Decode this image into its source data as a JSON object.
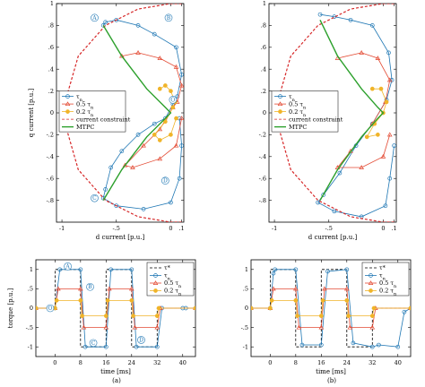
{
  "chart_data": [
    {
      "type": "line",
      "panel": "top-left",
      "xlabel": "d current [p.u.]",
      "ylabel": "q current [p.u.]",
      "xlim": [
        -1.05,
        0.12
      ],
      "ylim": [
        -1.0,
        1.0
      ],
      "x_ticks": [
        -1,
        -0.5,
        0,
        0.1
      ],
      "y_ticks": [
        -0.8,
        -0.6,
        -0.4,
        -0.2,
        0,
        0.2,
        0.4,
        0.6,
        0.8,
        1
      ],
      "legend_position": "middle-left",
      "series": [
        {
          "name": "τ_n",
          "color": "#1f77b4",
          "marker": "circle",
          "x": [
            -0.62,
            -0.6,
            -0.5,
            -0.3,
            -0.15,
            0.05,
            0.1,
            0.06,
            0.02,
            -0.05,
            -0.15,
            -0.3,
            -0.45,
            -0.55,
            -0.6,
            -0.62,
            -0.5,
            -0.25,
            0.0,
            0.08,
            0.1,
            0.08
          ],
          "y": [
            0.8,
            0.83,
            0.85,
            0.8,
            0.72,
            0.6,
            0.35,
            0.15,
            0.08,
            -0.05,
            -0.1,
            -0.2,
            -0.35,
            -0.5,
            -0.7,
            -0.78,
            -0.85,
            -0.88,
            -0.82,
            -0.6,
            -0.3,
            -0.05
          ]
        },
        {
          "name": "0.5 τ_n",
          "color": "#e34a33",
          "marker": "triangle",
          "x": [
            -0.45,
            -0.3,
            -0.1,
            0.05,
            0.1,
            0.06,
            0.02,
            -0.1,
            -0.25,
            -0.42,
            -0.35,
            -0.1,
            0.05,
            0.1
          ],
          "y": [
            0.52,
            0.55,
            0.5,
            0.42,
            0.25,
            0.1,
            0.05,
            -0.15,
            -0.3,
            -0.48,
            -0.5,
            -0.42,
            -0.3,
            -0.05
          ]
        },
        {
          "name": "0.2 τ_n",
          "color": "#f0b429",
          "marker": "circle",
          "x": [
            -0.1,
            -0.05,
            0.0,
            0.04,
            0.02,
            -0.05,
            -0.15,
            -0.1,
            0.0,
            0.05
          ],
          "y": [
            0.22,
            0.25,
            0.2,
            0.1,
            0.05,
            -0.08,
            -0.2,
            -0.25,
            -0.2,
            -0.05
          ]
        },
        {
          "name": "current constraint",
          "color": "#d62728",
          "style": "dashed",
          "x": [
            0.1,
            0.0,
            -0.3,
            -0.6,
            -0.85,
            -1.0,
            -0.85,
            -0.6,
            -0.3,
            0.0,
            0.1
          ],
          "y": [
            1.0,
            1.0,
            0.95,
            0.8,
            0.52,
            0.0,
            -0.52,
            -0.8,
            -0.95,
            -1.0,
            -1.0
          ]
        },
        {
          "name": "MTPC",
          "color": "#2ca02c",
          "x": [
            -0.62,
            -0.45,
            -0.22,
            -0.05,
            0.0,
            -0.05,
            -0.22,
            -0.45,
            -0.62
          ],
          "y": [
            0.8,
            0.52,
            0.22,
            0.05,
            0.0,
            -0.05,
            -0.22,
            -0.52,
            -0.8
          ]
        }
      ],
      "annotations": [
        "A",
        "B",
        "C",
        "D",
        "O"
      ]
    },
    {
      "type": "line",
      "panel": "top-right",
      "xlabel": "d current [p.u.]",
      "xlim": [
        -1.05,
        0.12
      ],
      "ylim": [
        -1.0,
        1.0
      ],
      "x_ticks": [
        -1,
        -0.5,
        0,
        0.1
      ],
      "y_ticks": [
        -0.8,
        -0.6,
        -0.4,
        -0.2,
        0,
        0.2,
        0.4,
        0.6,
        0.8,
        1
      ],
      "legend_position": "middle-left",
      "series": [
        {
          "name": "τ_n",
          "color": "#1f77b4",
          "marker": "circle",
          "x": [
            -0.58,
            -0.45,
            -0.3,
            -0.1,
            0.05,
            0.08,
            0.03,
            -0.1,
            -0.25,
            -0.4,
            -0.55,
            -0.6,
            -0.45,
            -0.2,
            0.02,
            0.06,
            0.1
          ],
          "y": [
            0.9,
            0.88,
            0.85,
            0.8,
            0.55,
            0.3,
            0.12,
            -0.1,
            -0.3,
            -0.55,
            -0.75,
            -0.82,
            -0.9,
            -0.95,
            -0.85,
            -0.6,
            -0.3
          ]
        },
        {
          "name": "0.5 τ_n",
          "color": "#e34a33",
          "marker": "triangle",
          "x": [
            -0.42,
            -0.2,
            -0.05,
            0.06,
            0.02,
            -0.1,
            -0.3,
            -0.42,
            -0.2,
            0.0,
            0.06
          ],
          "y": [
            0.5,
            0.55,
            0.5,
            0.3,
            0.1,
            -0.1,
            -0.35,
            -0.5,
            -0.5,
            -0.4,
            -0.2
          ]
        },
        {
          "name": "0.2 τ_n",
          "color": "#f0b429",
          "marker": "circle",
          "x": [
            -0.1,
            -0.02,
            0.03,
            0.0,
            -0.08,
            -0.15,
            -0.05
          ],
          "y": [
            0.22,
            0.22,
            0.1,
            0.0,
            -0.1,
            -0.22,
            -0.2
          ]
        },
        {
          "name": "current constraint",
          "color": "#d62728",
          "style": "dashed",
          "x": [
            0.1,
            0.0,
            -0.3,
            -0.6,
            -0.85,
            -1.0,
            -0.85,
            -0.6,
            -0.3,
            0.0,
            0.1
          ],
          "y": [
            1.0,
            1.0,
            0.95,
            0.8,
            0.52,
            0.0,
            -0.52,
            -0.8,
            -0.95,
            -1.0,
            -1.0
          ]
        },
        {
          "name": "MTPC",
          "color": "#2ca02c",
          "x": [
            -0.58,
            -0.42,
            -0.2,
            -0.05,
            0.0,
            -0.05,
            -0.2,
            -0.42,
            -0.58
          ],
          "y": [
            0.85,
            0.52,
            0.22,
            0.05,
            0.0,
            -0.05,
            -0.22,
            -0.52,
            -0.8
          ]
        }
      ]
    },
    {
      "type": "line",
      "panel": "bottom-left",
      "xlabel": "time [ms]",
      "ylabel": "torque [p.u.]",
      "xlim": [
        -6,
        44
      ],
      "ylim": [
        -1.25,
        1.25
      ],
      "x_ticks": [
        0,
        8,
        16,
        24,
        32,
        40
      ],
      "y_ticks": [
        -1,
        -0.5,
        0,
        0.5,
        1
      ],
      "legend_position": "top-right",
      "series": [
        {
          "name": "τ*",
          "color": "#000000",
          "style": "dashed",
          "x": [
            -6,
            0,
            0,
            8,
            8,
            16,
            16,
            24,
            24,
            32,
            32,
            40,
            40,
            44
          ],
          "y": [
            0,
            0,
            1,
            1,
            -1,
            -1,
            1,
            1,
            -1,
            -1,
            0,
            0,
            0,
            0
          ]
        },
        {
          "name": "τ_n",
          "color": "#1f77b4",
          "marker": "circle",
          "x": [
            -6,
            0,
            1.5,
            8,
            9.5,
            16,
            17.5,
            24,
            25.5,
            32,
            33.5,
            40,
            41,
            44
          ],
          "y": [
            0,
            0,
            1,
            1,
            -1,
            -1,
            1,
            1,
            -1,
            -1,
            0,
            0,
            0,
            0
          ]
        },
        {
          "name": "0.5 τ_n",
          "color": "#e34a33",
          "marker": "triangle",
          "x": [
            -6,
            0,
            1,
            8,
            9,
            16,
            17,
            24,
            25,
            32,
            33,
            44
          ],
          "y": [
            0,
            0,
            0.5,
            0.5,
            -0.5,
            -0.5,
            0.5,
            0.5,
            -0.5,
            -0.5,
            0,
            0
          ]
        },
        {
          "name": "0.2 τ_n",
          "color": "#f0b429",
          "marker": "circle",
          "x": [
            -6,
            0,
            0.5,
            8,
            8.5,
            16,
            16.5,
            24,
            24.5,
            32,
            32.5,
            44
          ],
          "y": [
            0,
            0,
            0.2,
            0.2,
            -0.2,
            -0.2,
            0.2,
            0.2,
            -0.2,
            -0.2,
            0,
            0
          ]
        }
      ],
      "annotations": [
        "A",
        "B",
        "C",
        "D",
        "O"
      ]
    },
    {
      "type": "line",
      "panel": "bottom-right",
      "xlabel": "time [ms]",
      "xlim": [
        -6,
        44
      ],
      "ylim": [
        -1.25,
        1.25
      ],
      "x_ticks": [
        0,
        8,
        16,
        24,
        32,
        40
      ],
      "y_ticks": [
        -1,
        -0.5,
        0,
        0.5,
        1
      ],
      "legend_position": "top-right",
      "series": [
        {
          "name": "τ*",
          "color": "#000000",
          "style": "dashed",
          "x": [
            -6,
            0,
            0,
            8,
            8,
            16,
            16,
            24,
            24,
            32,
            32,
            40,
            40,
            44
          ],
          "y": [
            0,
            0,
            1,
            1,
            -1,
            -1,
            1,
            1,
            -1,
            -1,
            0,
            0,
            0,
            0
          ]
        },
        {
          "name": "τ_n",
          "color": "#1f77b4",
          "marker": "circle",
          "x": [
            -6,
            0,
            1,
            1.5,
            8,
            10,
            16,
            18,
            24,
            26,
            32,
            34,
            40,
            42,
            44
          ],
          "y": [
            0,
            0,
            0.9,
            1,
            1,
            -0.95,
            -0.95,
            0.95,
            1,
            -0.9,
            -1,
            -0.95,
            -1,
            -0.1,
            0
          ]
        },
        {
          "name": "0.5 τ_n",
          "color": "#e34a33",
          "marker": "triangle",
          "x": [
            -6,
            0,
            1,
            8,
            9,
            16,
            17,
            24,
            25,
            32,
            33,
            44
          ],
          "y": [
            0,
            0,
            0.5,
            0.5,
            -0.5,
            -0.5,
            0.5,
            0.5,
            -0.5,
            -0.5,
            0,
            0
          ]
        },
        {
          "name": "0.2 τ_n",
          "color": "#f0b429",
          "marker": "circle",
          "x": [
            -6,
            0,
            0.5,
            8,
            8.5,
            16,
            16.5,
            24,
            24.5,
            32,
            32.5,
            44
          ],
          "y": [
            0,
            0,
            0.2,
            0.2,
            -0.2,
            -0.2,
            0.2,
            0.2,
            -0.2,
            -0.2,
            0,
            0
          ]
        }
      ]
    }
  ],
  "captions": [
    "(a)",
    "(b)"
  ]
}
